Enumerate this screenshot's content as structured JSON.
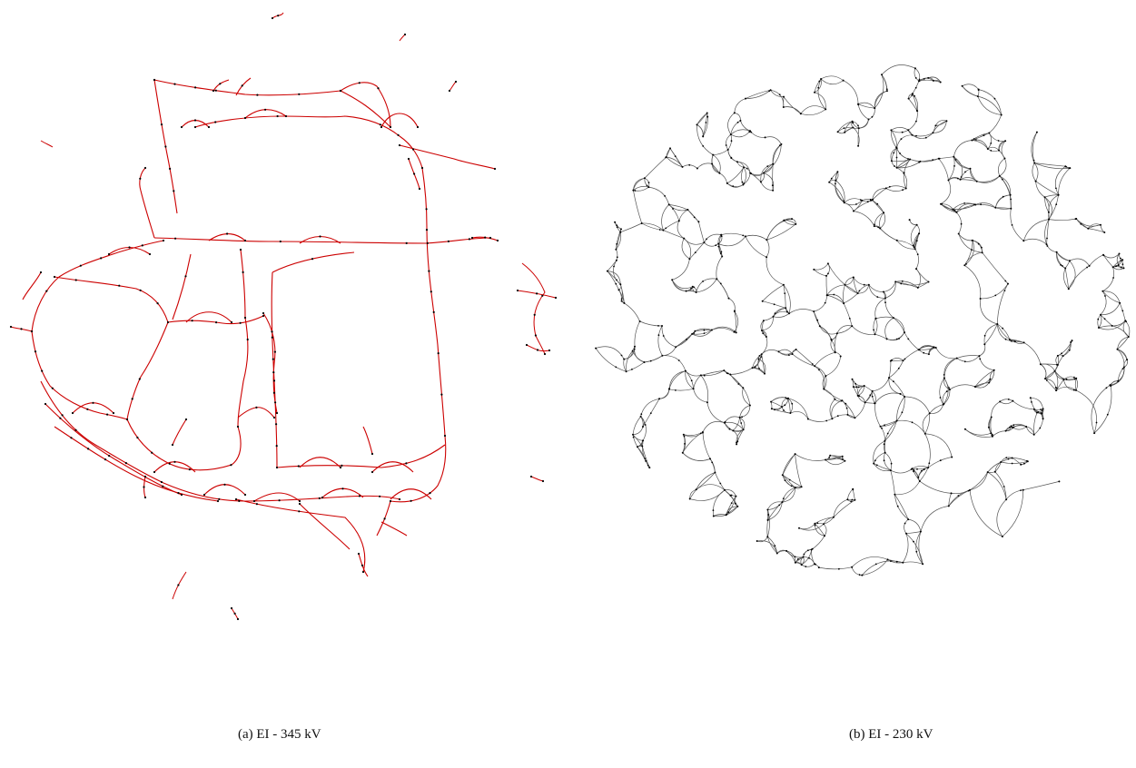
{
  "figure": {
    "panels": [
      {
        "caption": "(a) EI - 345 kV",
        "line_color": "#cc0000",
        "node_color": "#000000"
      },
      {
        "caption": "(b) EI - 230 kV",
        "line_color": "#555555",
        "node_color": "#000000"
      }
    ]
  }
}
